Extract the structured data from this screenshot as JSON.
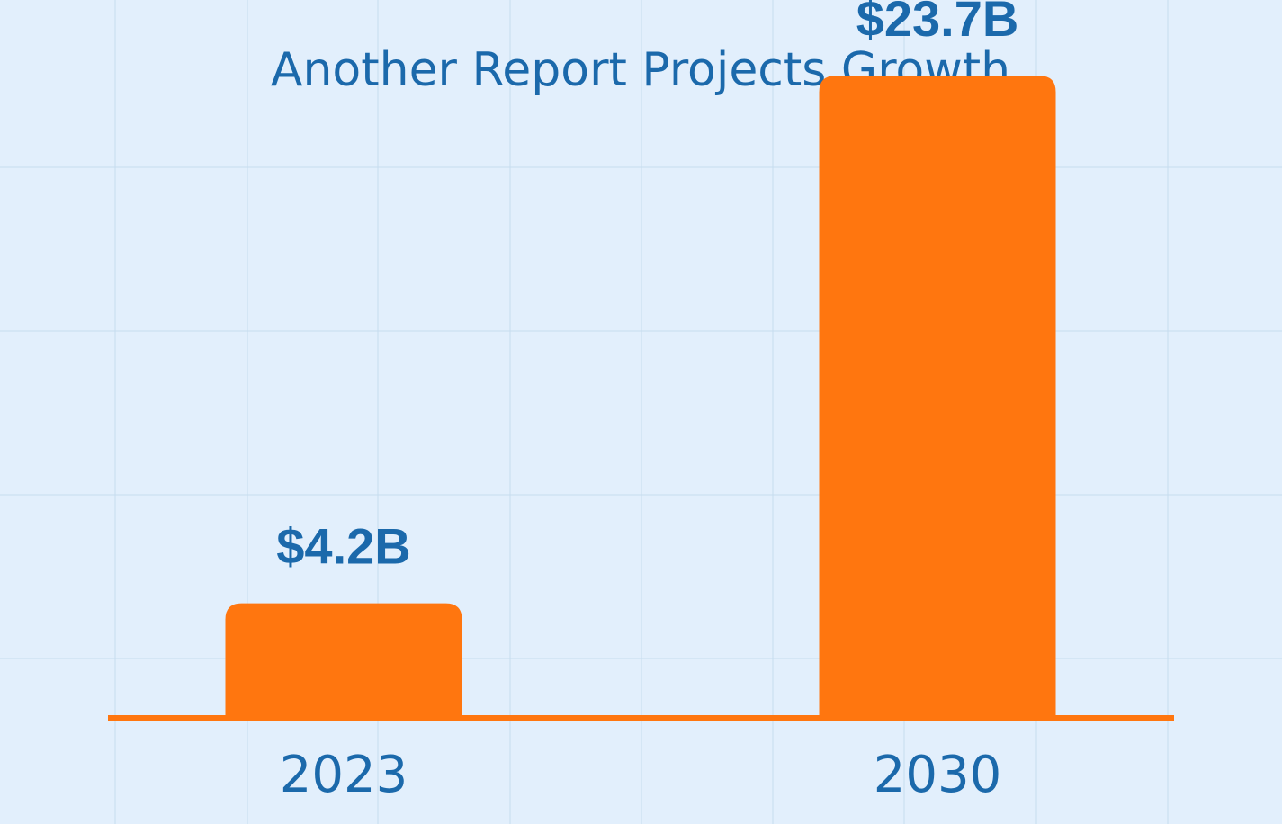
{
  "colors": {
    "background": "#e2effc",
    "grid": "#c6dcee",
    "bar": "#ff760f",
    "baseline": "#ff760f",
    "text": "#1b69ab"
  },
  "chart_data": {
    "type": "bar",
    "title": "Another Report Projects Growth",
    "xlabel": "",
    "ylabel": "",
    "categories": [
      "2023",
      "2030"
    ],
    "values": [
      4.2,
      23.7
    ],
    "value_labels": [
      "$4.2B",
      "$23.7B"
    ],
    "unit": "billion USD",
    "ylim": [
      0,
      26.5
    ],
    "grid": true,
    "legend": "none"
  }
}
